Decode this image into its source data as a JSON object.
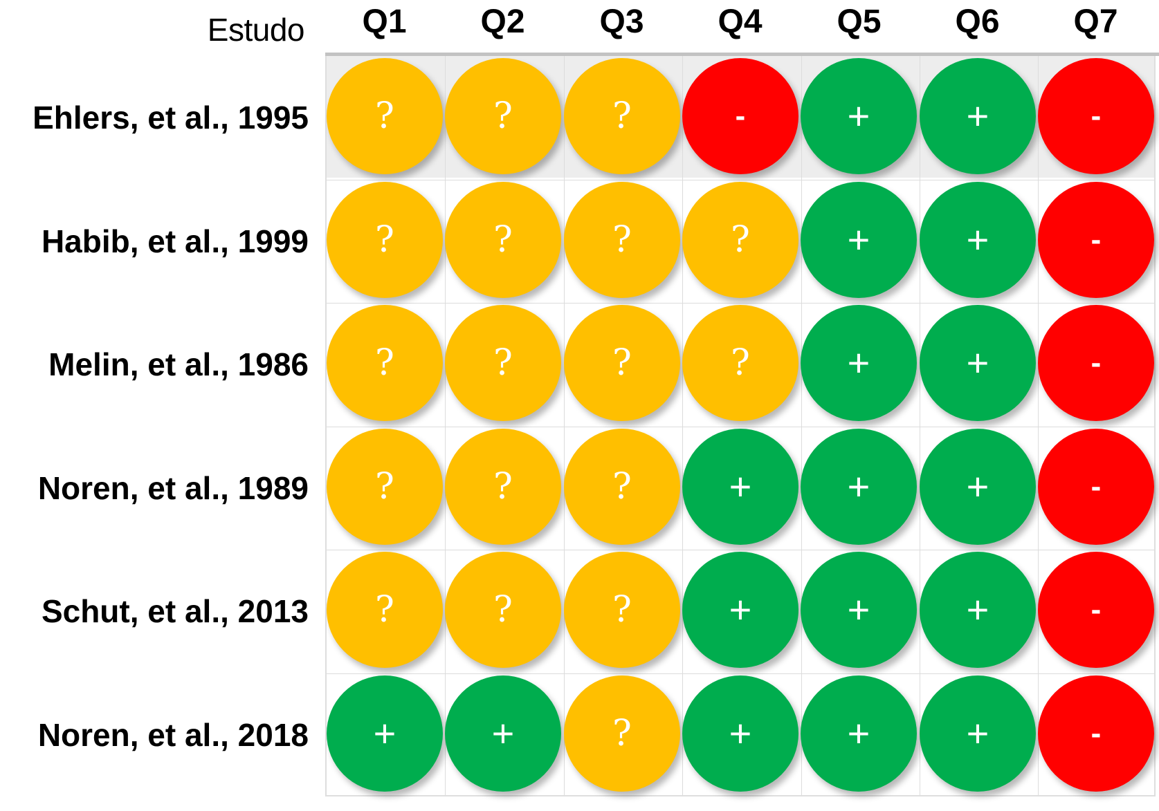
{
  "chart_data": {
    "type": "table",
    "row_header": "Estudo",
    "columns": [
      "Q1",
      "Q2",
      "Q3",
      "Q4",
      "Q5",
      "Q6",
      "Q7"
    ],
    "legend": {
      "?": {
        "color": "#ffbf00"
      },
      "+": {
        "color": "#00ad4e"
      },
      "-": {
        "color": "#ff0000"
      }
    },
    "rows": [
      {
        "study": "Ehlers, et al., 1995",
        "ratings": [
          "?",
          "?",
          "?",
          "-",
          "+",
          "+",
          "-"
        ]
      },
      {
        "study": "Habib, et al., 1999",
        "ratings": [
          "?",
          "?",
          "?",
          "?",
          "+",
          "+",
          "-"
        ]
      },
      {
        "study": "Melin, et al., 1986",
        "ratings": [
          "?",
          "?",
          "?",
          "?",
          "+",
          "+",
          "-"
        ]
      },
      {
        "study": "Noren, et al., 1989",
        "ratings": [
          "?",
          "?",
          "?",
          "+",
          "+",
          "+",
          "-"
        ]
      },
      {
        "study": "Schut, et al., 2013",
        "ratings": [
          "?",
          "?",
          "?",
          "+",
          "+",
          "+",
          "-"
        ]
      },
      {
        "study": "Noren, et al., 2018",
        "ratings": [
          "+",
          "+",
          "?",
          "+",
          "+",
          "+",
          "-"
        ]
      }
    ]
  }
}
